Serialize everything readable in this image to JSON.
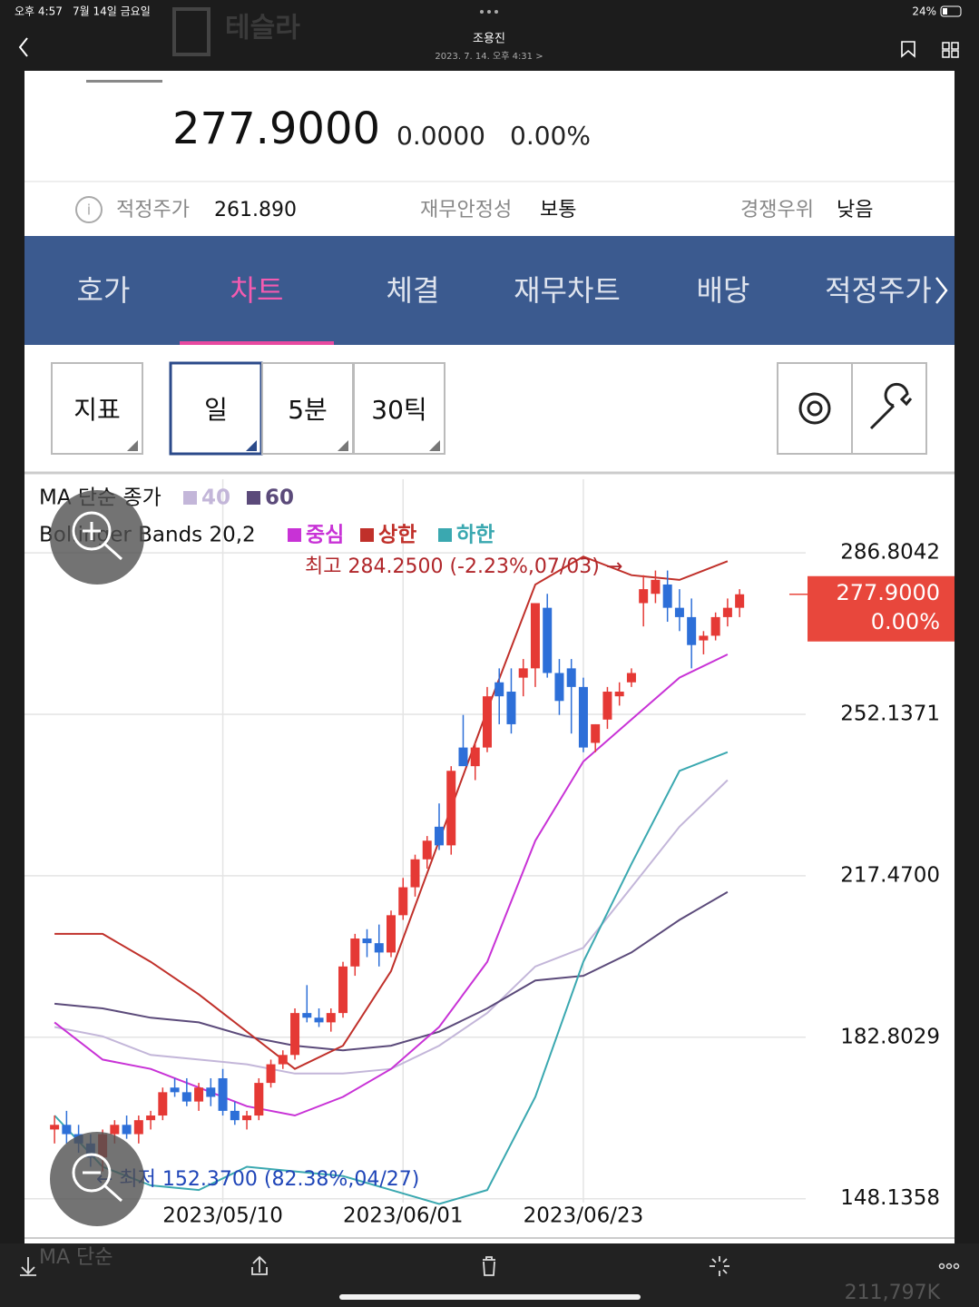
{
  "status_bar": {
    "time": "오후 4:57",
    "date": "7월 14일 금요일",
    "battery": "24%"
  },
  "header": {
    "stock": "테슬라",
    "author": "조용진",
    "timestamp": "2023. 7. 14. 오후 4:31 >"
  },
  "quote": {
    "price": "277.9000",
    "change": "0.0000",
    "change_pct": "0.00%"
  },
  "metrics": [
    {
      "label": "적정주가",
      "value": "261.890"
    },
    {
      "label": "재무안정성",
      "value": "보통"
    },
    {
      "label": "경쟁우위",
      "value": "낮음"
    }
  ],
  "tabs": [
    "호가",
    "차트",
    "체결",
    "재무차트",
    "배당",
    "적정주가"
  ],
  "buttons": [
    "지표",
    "일",
    "5분",
    "30틱"
  ],
  "chart_data": {
    "type": "candlestick",
    "ma_title": "MA 단순 종가",
    "bb_title": "Bollinger Bands 20,2",
    "up_color": "#e53935",
    "down_color": "#2d6fd8",
    "candles": {
      "open": [
        163,
        164,
        162,
        160,
        157,
        162,
        164,
        162,
        165,
        166,
        172,
        171,
        169,
        172,
        174,
        167,
        165,
        166,
        173,
        177,
        179,
        188,
        187,
        186,
        188,
        198,
        204,
        203,
        201,
        209,
        215,
        221,
        228,
        224,
        245,
        241,
        245,
        259,
        257,
        260,
        262,
        275,
        261,
        262,
        258,
        246,
        251,
        256,
        259,
        276,
        278,
        280,
        275,
        273,
        268,
        269,
        273,
        275
      ],
      "high": [
        166,
        167,
        164,
        162,
        163,
        165,
        166,
        166,
        167,
        172,
        174,
        174,
        173,
        174,
        176,
        169,
        167,
        174,
        178,
        180,
        189,
        194,
        189,
        189,
        199,
        205,
        206,
        207,
        210,
        217,
        222,
        226,
        233,
        241,
        252,
        246,
        258,
        262,
        262,
        264,
        276,
        278,
        264,
        264,
        260,
        250,
        258,
        259,
        262,
        282,
        283,
        283,
        279,
        277,
        270,
        274,
        277,
        279
      ],
      "low": [
        160,
        160,
        158,
        155,
        154,
        160,
        161,
        160,
        163,
        165,
        170,
        168,
        167,
        168,
        166,
        164,
        163,
        165,
        172,
        176,
        178,
        186,
        185,
        184,
        187,
        196,
        200,
        198,
        200,
        208,
        213,
        219,
        223,
        222,
        243,
        238,
        244,
        250,
        248,
        256,
        258,
        260,
        252,
        248,
        244,
        244,
        249,
        254,
        258,
        271,
        276,
        272,
        270,
        262,
        265,
        268,
        271,
        273
      ],
      "close": [
        164,
        162,
        160,
        157,
        162,
        164,
        162,
        165,
        166,
        171,
        171,
        169,
        172,
        170,
        167,
        165,
        166,
        173,
        177,
        179,
        188,
        187,
        186,
        188,
        198,
        204,
        203,
        201,
        209,
        215,
        221,
        225,
        224,
        240,
        241,
        245,
        256,
        256,
        250,
        262,
        276,
        261,
        255,
        258,
        245,
        250,
        257,
        257,
        261,
        279,
        281,
        275,
        273,
        267,
        269,
        273,
        275,
        277.9
      ]
    },
    "series": [
      {
        "name": "40",
        "group": "ma",
        "color": "#c3b6d9",
        "x": [
          0,
          4,
          8,
          12,
          16,
          20,
          24,
          28,
          32,
          36,
          40,
          44,
          48,
          52,
          56
        ],
        "values": [
          185,
          183,
          179,
          178,
          177,
          175,
          175,
          176,
          181,
          188,
          198,
          202,
          215,
          228,
          238
        ]
      },
      {
        "name": "60",
        "group": "ma",
        "color": "#5b4a7a",
        "x": [
          0,
          4,
          8,
          12,
          16,
          20,
          24,
          28,
          32,
          36,
          40,
          44,
          48,
          52,
          56
        ],
        "values": [
          190,
          189,
          187,
          186,
          183,
          181,
          180,
          181,
          184,
          189,
          195,
          196,
          201,
          208,
          214
        ]
      },
      {
        "name": "중심",
        "group": "bb",
        "color": "#c832d6",
        "x": [
          0,
          4,
          8,
          12,
          16,
          20,
          24,
          28,
          32,
          36,
          40,
          44,
          48,
          52,
          56
        ],
        "values": [
          186,
          178,
          176,
          172,
          168,
          166,
          170,
          176,
          185,
          199,
          225,
          242,
          251,
          260,
          265
        ]
      },
      {
        "name": "상한",
        "group": "bb",
        "color": "#c0302a",
        "x": [
          0,
          4,
          8,
          12,
          16,
          20,
          24,
          28,
          32,
          36,
          40,
          44,
          48,
          52,
          56
        ],
        "values": [
          205,
          205,
          199,
          192,
          184,
          176,
          181,
          197,
          225,
          253,
          280,
          286,
          282,
          281,
          285
        ]
      },
      {
        "name": "하한",
        "group": "bb",
        "color": "#3aa8b0",
        "x": [
          0,
          4,
          8,
          12,
          16,
          20,
          24,
          28,
          32,
          36,
          40,
          44,
          48,
          52,
          56
        ],
        "values": [
          166,
          155,
          151,
          150,
          155,
          154,
          153,
          150,
          147,
          150,
          170,
          199,
          220,
          240,
          244
        ]
      }
    ],
    "xlim": [
      -2.5,
      62.5
    ],
    "xticks": [
      {
        "value": 14,
        "label": "2023/05/10"
      },
      {
        "value": 29,
        "label": "2023/06/01"
      },
      {
        "value": 44,
        "label": "2023/06/23"
      }
    ],
    "ylim": [
      147.3,
      302.6
    ],
    "yticks": [
      148.1358,
      182.8029,
      {
        "value": 217.47,
        "label": "217.4700"
      },
      252.1371,
      286.8042
    ],
    "grid": true,
    "annotations": [
      {
        "text": "최고 284.2500 (-2.23%,07/03) →"
      },
      {
        "text": "← 최저 152.3700 (82.38%,04/27)"
      }
    ],
    "last_price": {
      "value": 277.9,
      "label": "277.9000",
      "change": "0.00%"
    }
  },
  "volume_panel": {
    "label": "MA 단순",
    "value": "211,797K"
  }
}
